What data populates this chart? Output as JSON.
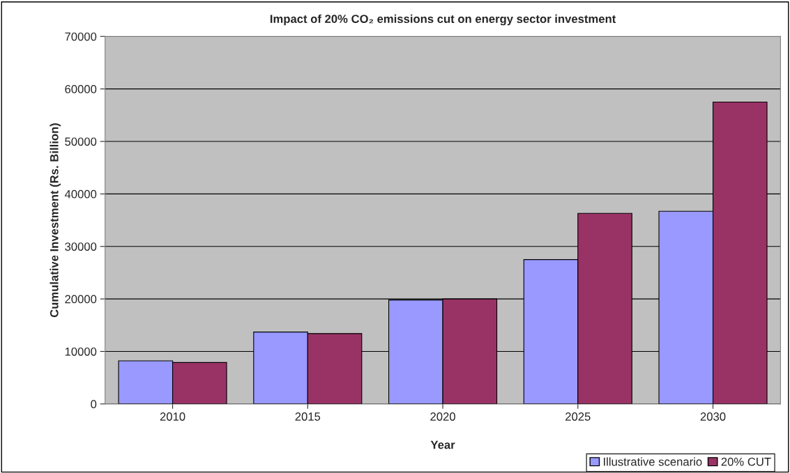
{
  "chart_data": {
    "type": "bar",
    "title": "Impact of 20% CO₂ emissions cut on energy sector investment",
    "xlabel": "Year",
    "ylabel": "Cumulative Investment (Rs. Billion)",
    "categories": [
      "2010",
      "2015",
      "2020",
      "2025",
      "2030"
    ],
    "series": [
      {
        "name": "Illustrative scenario",
        "color": "#9999ff",
        "values": [
          8200,
          13700,
          19800,
          27500,
          36700
        ]
      },
      {
        "name": "20% CUT",
        "color": "#993366",
        "values": [
          7900,
          13400,
          20000,
          36300,
          57500
        ]
      }
    ],
    "ylim": [
      0,
      70000
    ],
    "yticks": [
      0,
      10000,
      20000,
      30000,
      40000,
      50000,
      60000,
      70000
    ],
    "grid": "y",
    "legend": "bottom right"
  }
}
